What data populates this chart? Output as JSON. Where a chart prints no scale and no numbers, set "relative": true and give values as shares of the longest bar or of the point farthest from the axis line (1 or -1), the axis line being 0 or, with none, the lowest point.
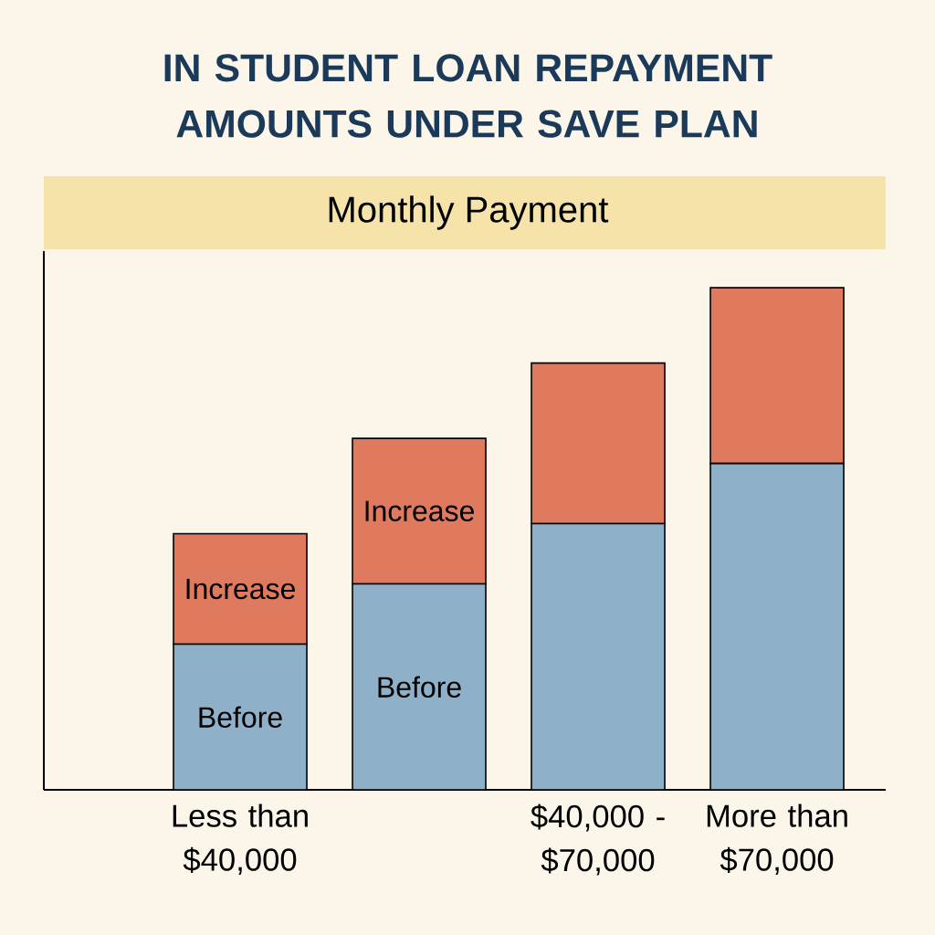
{
  "chart_data": {
    "type": "bar",
    "title": "IN STUDENT LOAN REPAYMENT AMOUNTS UNDER SAVE PLAN",
    "subtitle": "Monthly Payment",
    "categories": [
      "Less than $40,000",
      null,
      "$40,000 - $70,000",
      "More than $70,000"
    ],
    "stacked": true,
    "relative": true,
    "series": [
      {
        "name": "Before",
        "color": "#8fb0c9",
        "values": [
          0.29,
          0.41,
          0.53,
          0.65
        ]
      },
      {
        "name": "Increase",
        "color": "#e07a5f",
        "values": [
          0.22,
          0.29,
          0.32,
          0.35
        ]
      }
    ]
  }
}
